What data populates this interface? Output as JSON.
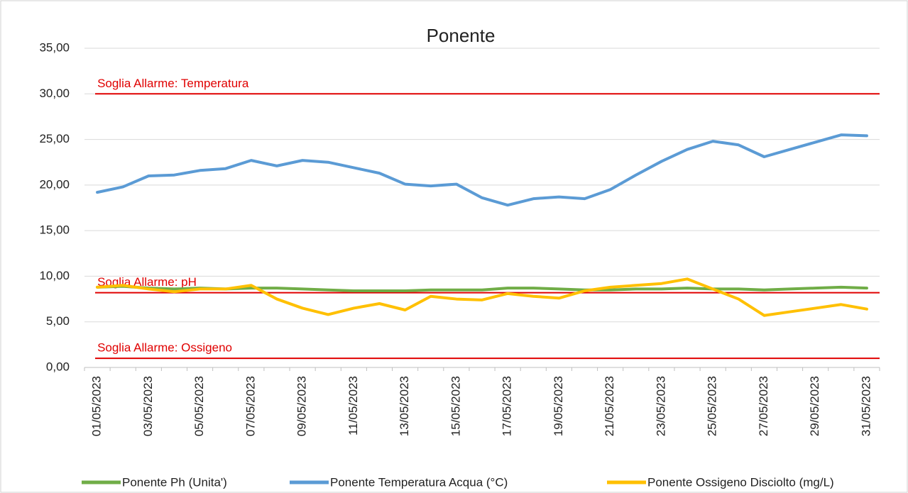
{
  "chart_data": {
    "type": "line",
    "title": "Ponente",
    "categories": [
      "01/05/2023",
      null,
      "03/05/2023",
      null,
      "05/05/2023",
      null,
      "07/05/2023",
      null,
      "09/05/2023",
      null,
      "11/05/2023",
      null,
      "13/05/2023",
      null,
      "15/05/2023",
      null,
      "17/05/2023",
      null,
      "19/05/2023",
      null,
      "21/05/2023",
      null,
      "23/05/2023",
      null,
      "25/05/2023",
      null,
      "27/05/2023",
      null,
      "29/05/2023",
      null,
      "31/05/2023"
    ],
    "series": [
      {
        "name": "Ponente Ph (Unita')",
        "color": "#70ad47",
        "values": [
          8.8,
          8.9,
          8.7,
          8.6,
          8.7,
          8.6,
          8.7,
          8.7,
          8.6,
          8.5,
          8.4,
          8.4,
          8.4,
          8.5,
          8.5,
          8.5,
          8.7,
          8.7,
          8.6,
          8.5,
          8.5,
          8.6,
          8.6,
          8.7,
          8.6,
          8.6,
          8.5,
          8.6,
          8.7,
          8.8,
          8.7
        ]
      },
      {
        "name": "Ponente Temperatura Acqua (°C)",
        "color": "#5b9bd5",
        "values": [
          19.2,
          19.8,
          21.0,
          21.1,
          21.6,
          21.8,
          22.7,
          22.1,
          22.7,
          22.5,
          21.9,
          21.3,
          20.1,
          19.9,
          20.1,
          18.6,
          17.8,
          18.5,
          18.7,
          18.5,
          19.5,
          21.1,
          22.6,
          23.9,
          24.8,
          24.4,
          23.1,
          23.9,
          24.7,
          25.5,
          25.4
        ]
      },
      {
        "name": "Ponente Ossigeno Disciolto (mg/L)",
        "color": "#ffc000",
        "values": [
          8.8,
          9.0,
          8.6,
          8.3,
          8.6,
          8.6,
          9.0,
          7.5,
          6.5,
          5.8,
          6.5,
          7.0,
          6.3,
          7.8,
          7.5,
          7.4,
          8.1,
          7.8,
          7.6,
          8.4,
          8.8,
          9.0,
          9.2,
          9.7,
          8.6,
          7.5,
          5.7,
          6.1,
          6.5,
          6.9,
          6.4
        ]
      }
    ],
    "thresholds": [
      {
        "label": "Soglia Allarme: Temperatura",
        "value": 30,
        "color": "#e00000"
      },
      {
        "label": "Soglia Allarme: pH",
        "value": 8.2,
        "color": "#e00000"
      },
      {
        "label": "Soglia Allarme: Ossigeno",
        "value": 1,
        "color": "#e00000"
      }
    ],
    "ylim": [
      0,
      35
    ],
    "yticks": [
      {
        "value": 0,
        "label": "0,00"
      },
      {
        "value": 5,
        "label": "5,00"
      },
      {
        "value": 10,
        "label": "10,00"
      },
      {
        "value": 15,
        "label": "15,00"
      },
      {
        "value": 20,
        "label": "20,00"
      },
      {
        "value": 25,
        "label": "25,00"
      },
      {
        "value": 30,
        "label": "30,00"
      },
      {
        "value": 35,
        "label": "35,00"
      }
    ],
    "grid": true,
    "legend": "bottom"
  }
}
